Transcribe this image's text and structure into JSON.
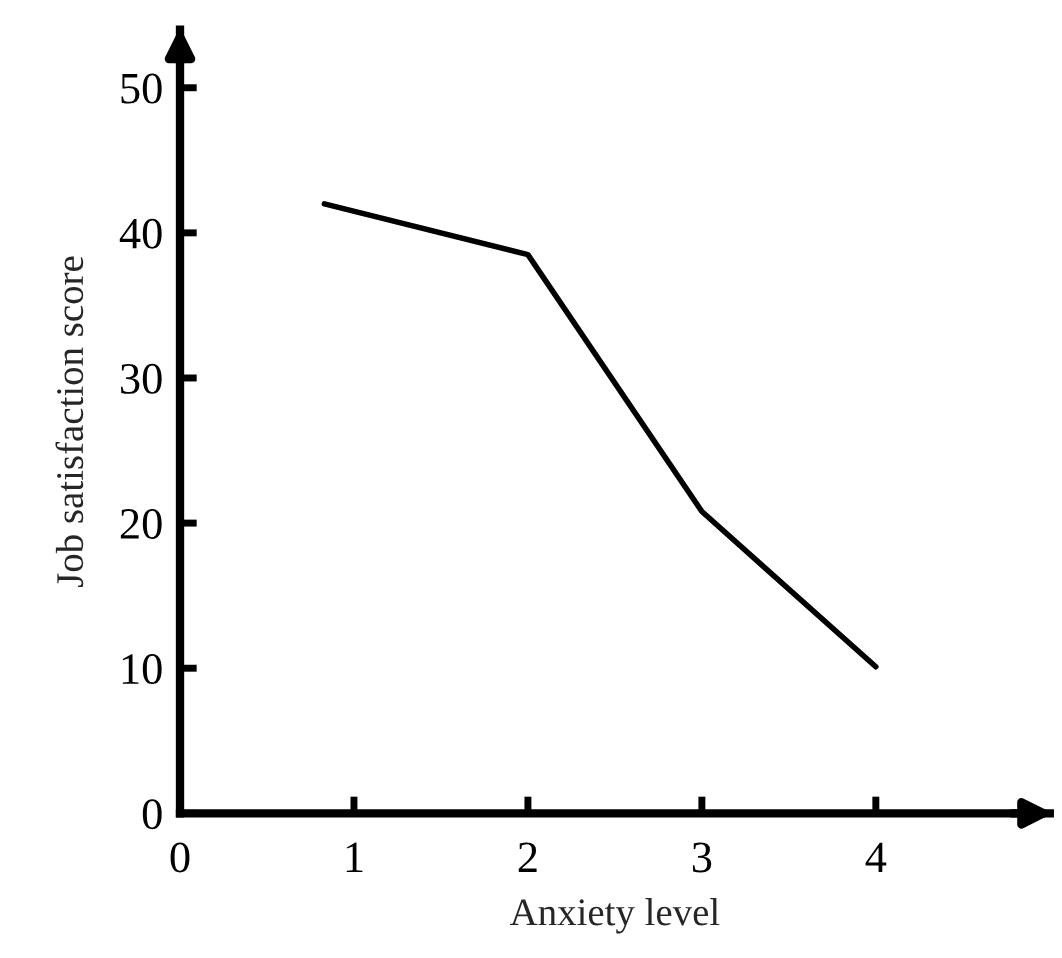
{
  "chart_data": {
    "type": "line",
    "xlabel": "Anxiety level",
    "ylabel": "Job satisfaction score",
    "x": [
      0.83,
      2,
      3,
      4
    ],
    "series": [
      {
        "color": "#000000",
        "values": [
          42.0,
          38.5,
          20.8,
          10.1
        ]
      }
    ],
    "xlim": [
      0,
      5
    ],
    "ylim": [
      0,
      54
    ],
    "xticks": [
      0,
      1,
      2,
      3,
      4
    ],
    "yticks": [
      0,
      10,
      20,
      30,
      40,
      50
    ],
    "grid": false
  }
}
